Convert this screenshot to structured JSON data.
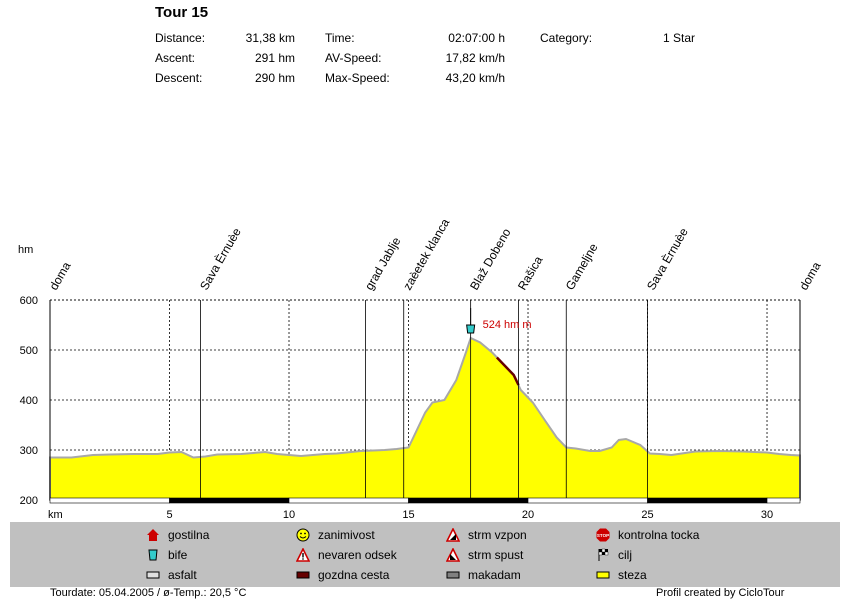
{
  "tour": {
    "title": "Tour 15",
    "stats": [
      {
        "label": "Distance:",
        "value": "31,38 km"
      },
      {
        "label": "Ascent:",
        "value": "291 hm"
      },
      {
        "label": "Descent:",
        "value": "290 hm"
      },
      {
        "label": "Time:",
        "value": "02:07:00 h"
      },
      {
        "label": "AV-Speed:",
        "value": "17,82 km/h"
      },
      {
        "label": "Max-Speed:",
        "value": "43,20 km/h"
      },
      {
        "label": "Category:",
        "value": "1 Star"
      }
    ]
  },
  "chart_data": {
    "type": "area",
    "ylabel": "hm",
    "xlabel": "km",
    "xlim": [
      0,
      31.38
    ],
    "ylim": [
      200,
      600
    ],
    "x_ticks": [
      5,
      10,
      15,
      20,
      25,
      30
    ],
    "y_ticks": [
      200,
      300,
      400,
      500,
      600
    ],
    "series": [
      {
        "fill": "#ffff00",
        "points": [
          [
            0,
            285
          ],
          [
            0.9,
            285
          ],
          [
            1.8,
            290
          ],
          [
            2.5,
            291
          ],
          [
            3.5,
            292
          ],
          [
            4.5,
            292
          ],
          [
            5,
            295
          ],
          [
            5.5,
            296
          ],
          [
            6,
            285
          ],
          [
            6.5,
            287
          ],
          [
            7,
            291
          ],
          [
            8,
            292
          ],
          [
            9,
            296
          ],
          [
            9.5,
            292
          ],
          [
            10,
            290
          ],
          [
            10.5,
            288
          ],
          [
            11.5,
            292
          ],
          [
            12,
            293
          ],
          [
            13,
            298
          ],
          [
            14,
            300
          ],
          [
            14.5,
            302
          ],
          [
            15,
            305
          ],
          [
            15.2,
            325
          ],
          [
            15.7,
            375
          ],
          [
            16,
            395
          ],
          [
            16.5,
            400
          ],
          [
            17,
            440
          ],
          [
            17.4,
            495
          ],
          [
            17.6,
            524
          ],
          [
            18,
            515
          ],
          [
            18.5,
            495
          ],
          [
            19,
            470
          ],
          [
            19.4,
            450
          ],
          [
            19.7,
            420
          ],
          [
            20.2,
            395
          ],
          [
            20.7,
            360
          ],
          [
            21.2,
            325
          ],
          [
            21.6,
            305
          ],
          [
            22,
            303
          ],
          [
            22.6,
            298
          ],
          [
            23,
            298
          ],
          [
            23.5,
            305
          ],
          [
            23.8,
            320
          ],
          [
            24.1,
            322
          ],
          [
            24.7,
            310
          ],
          [
            25.1,
            293
          ],
          [
            25.5,
            292
          ],
          [
            26,
            290
          ],
          [
            27,
            297
          ],
          [
            28,
            298
          ],
          [
            29,
            297
          ],
          [
            30,
            295
          ],
          [
            30.5,
            292
          ],
          [
            31,
            290
          ],
          [
            31.38,
            289
          ]
        ]
      }
    ],
    "max_annotation": {
      "x": 17.6,
      "y": 524,
      "label": "524 hm m",
      "color": "#cc0000"
    },
    "surface_segments": [
      {
        "from": 18.7,
        "to": 19.6,
        "surface": "gozdna cesta",
        "color": "#660000"
      }
    ],
    "waypoints": [
      {
        "x": 0,
        "label": "doma"
      },
      {
        "x": 6.3,
        "label": "Sava Èrnuèe"
      },
      {
        "x": 13.2,
        "label": "grad Jablje"
      },
      {
        "x": 14.8,
        "label": "zaèetek klanca"
      },
      {
        "x": 17.6,
        "label": "Blaž Dobeno"
      },
      {
        "x": 19.6,
        "label": "Rašica"
      },
      {
        "x": 21.6,
        "label": "Gameljne"
      },
      {
        "x": 25.0,
        "label": "Sava Èrnuèe"
      },
      {
        "x": 31.38,
        "label": "doma"
      }
    ]
  },
  "legend": [
    {
      "icon": "gostilna-icon",
      "label": "gostilna"
    },
    {
      "icon": "zanimivost-icon",
      "label": "zanimivost"
    },
    {
      "icon": "strm-vzpon-icon",
      "label": "strm vzpon"
    },
    {
      "icon": "kontrolna-tocka-icon",
      "label": "kontrolna tocka"
    },
    {
      "icon": "bife-icon",
      "label": "bife"
    },
    {
      "icon": "nevaren-odsek-icon",
      "label": "nevaren odsek"
    },
    {
      "icon": "strm-spust-icon",
      "label": "strm spust"
    },
    {
      "icon": "cilj-icon",
      "label": "cilj"
    },
    {
      "icon": "asfalt-icon",
      "label": "asfalt"
    },
    {
      "icon": "gozdna-cesta-icon",
      "label": "gozdna cesta"
    },
    {
      "icon": "makadam-icon",
      "label": "makadam"
    },
    {
      "icon": "steza-icon",
      "label": "steza"
    }
  ],
  "footer": {
    "tourdate": "Tourdate: 05.04.2005  /  ø-Temp.: 20,5 °C",
    "credit": "Profil created by CicloTour"
  }
}
